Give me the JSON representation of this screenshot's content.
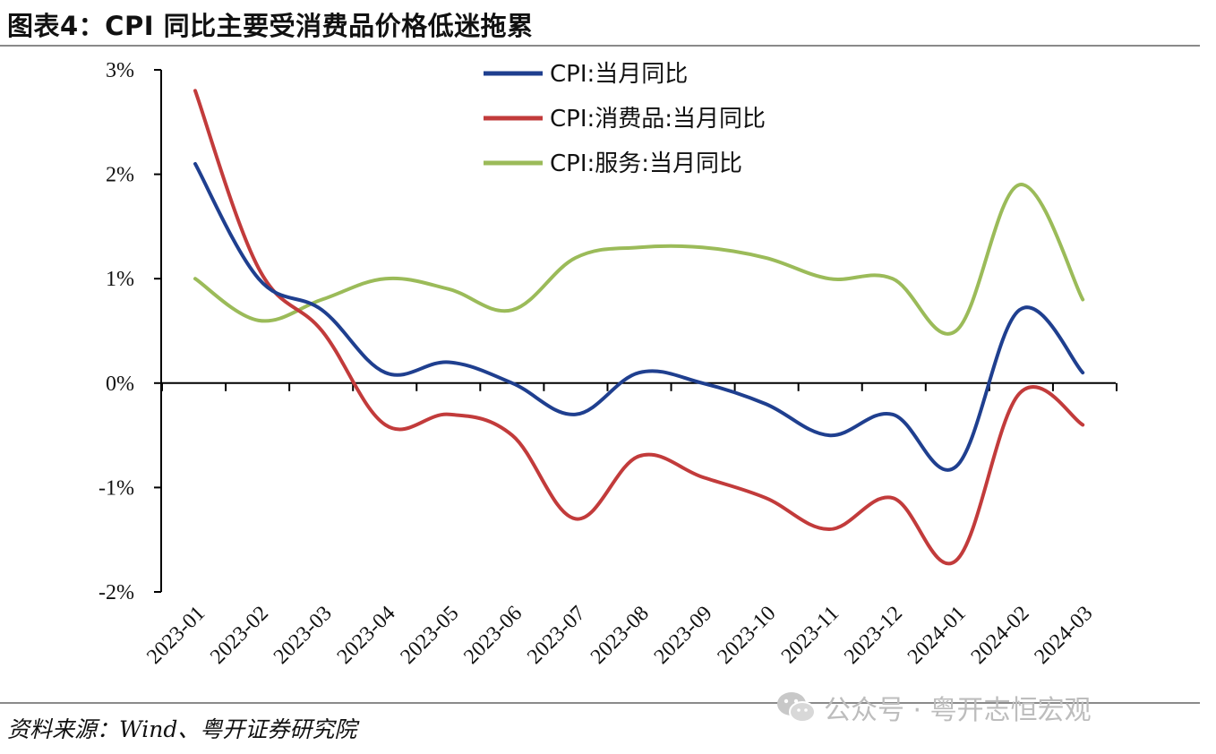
{
  "title": "图表4：CPI 同比主要受消费品价格低迷拖累",
  "source": "资料来源：Wind、粤开证券研究院",
  "watermark": "公众号 · 粤开志恒宏观",
  "chart_data": {
    "type": "line",
    "categories": [
      "2023-01",
      "2023-02",
      "2023-03",
      "2023-04",
      "2023-05",
      "2023-06",
      "2023-07",
      "2023-08",
      "2023-09",
      "2023-10",
      "2023-11",
      "2023-12",
      "2024-01",
      "2024-02",
      "2024-03"
    ],
    "ylim": [
      -2,
      3
    ],
    "yticks": [
      "3%",
      "2%",
      "1%",
      "0%",
      "-1%",
      "-2%"
    ],
    "ytick_values": [
      3,
      2,
      1,
      0,
      -1,
      -2
    ],
    "legend_position": "top-center",
    "grid": false,
    "series": [
      {
        "name": "CPI:当月同比",
        "color": "#1f3f8f",
        "values": [
          2.1,
          1.0,
          0.7,
          0.1,
          0.2,
          0.0,
          -0.3,
          0.1,
          0.0,
          -0.2,
          -0.5,
          -0.3,
          -0.8,
          0.7,
          0.1
        ]
      },
      {
        "name": "CPI:消费品:当月同比",
        "color": "#c23b3b",
        "values": [
          2.8,
          1.1,
          0.5,
          -0.4,
          -0.3,
          -0.5,
          -1.3,
          -0.7,
          -0.9,
          -1.1,
          -1.4,
          -1.1,
          -1.7,
          -0.1,
          -0.4
        ]
      },
      {
        "name": "CPI:服务:当月同比",
        "color": "#9bbb59",
        "values": [
          1.0,
          0.6,
          0.8,
          1.0,
          0.9,
          0.7,
          1.2,
          1.3,
          1.3,
          1.2,
          1.0,
          1.0,
          0.5,
          1.9,
          0.8
        ]
      }
    ]
  }
}
